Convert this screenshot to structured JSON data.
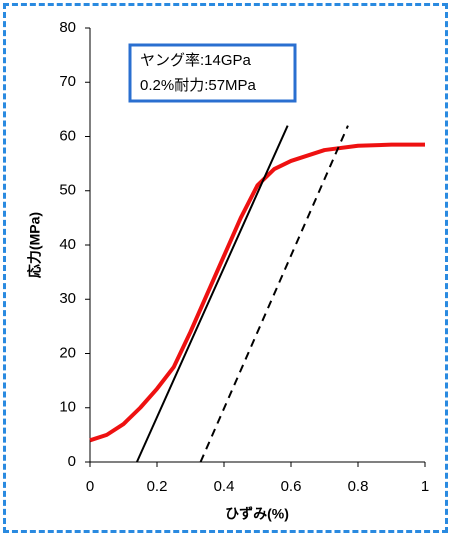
{
  "chart_data": {
    "type": "line",
    "x_label": "ひずみ(%)",
    "y_label": "応力(MPa)",
    "annotations": [
      "ヤング率:14GPa",
      "0.2%耐力:57MPa"
    ],
    "xlim": [
      0,
      1
    ],
    "xticks": [
      0,
      0.2,
      0.4,
      0.6,
      0.8,
      1
    ],
    "ylim": [
      0,
      80
    ],
    "yticks": [
      0,
      10,
      20,
      30,
      40,
      50,
      60,
      70,
      80
    ],
    "series": [
      {
        "color": "#ee1111",
        "width": 4,
        "dash": false,
        "x": [
          0,
          0.05,
          0.1,
          0.15,
          0.2,
          0.25,
          0.3,
          0.35,
          0.4,
          0.45,
          0.5,
          0.55,
          0.6,
          0.7,
          0.8,
          0.9,
          1
        ],
        "values": [
          4,
          5,
          7,
          10,
          13.5,
          17.5,
          24,
          31,
          38,
          45,
          51,
          54,
          55.5,
          57.5,
          58.3,
          58.5,
          58.5
        ]
      },
      {
        "color": "#000000",
        "width": 2,
        "dash": false,
        "x": [
          0.14,
          0.59
        ],
        "values": [
          0,
          62
        ]
      },
      {
        "color": "#000000",
        "width": 2,
        "dash": true,
        "x": [
          0.33,
          0.77
        ],
        "values": [
          0,
          62
        ]
      }
    ]
  }
}
